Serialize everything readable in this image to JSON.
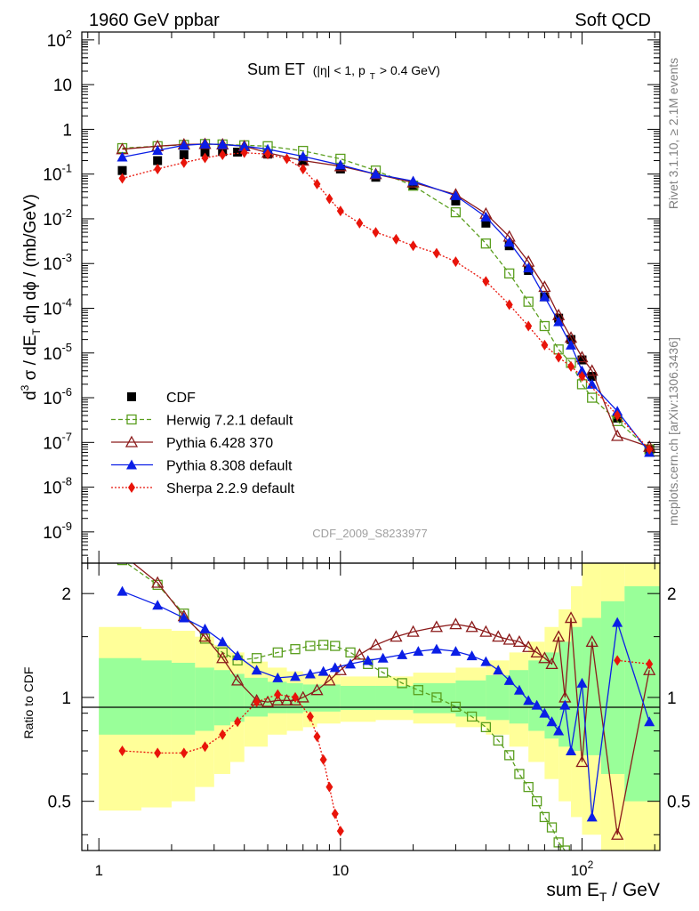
{
  "header": {
    "left": "1960 GeV ppbar",
    "right": "Soft QCD"
  },
  "side_labels": {
    "rivet": "Rivet 3.1.10, ≥ 2.1M events",
    "mcplots": "mcplots.cern.ch [arXiv:1306.3436]"
  },
  "plot_title": {
    "main": "Sum ET",
    "eta_cut": "(|η| < 1, p",
    "pt_sub": "T",
    "pt_cut": " > 0.4 GeV)"
  },
  "analysis_id": "CDF_2009_S8233977",
  "axes": {
    "y_main_label": "d³σ / dE_T dη dφ / (mb/GeV)",
    "y_ratio_label": "Ratio to CDF",
    "x_label": "sum E_T / GeV"
  },
  "legend": [
    {
      "label": "CDF",
      "color": "#000000",
      "marker": "square-filled",
      "line": "none"
    },
    {
      "label": "Herwig 7.2.1 default",
      "color": "#5a9e1e",
      "marker": "square-open",
      "line": "dashed"
    },
    {
      "label": "Pythia 6.428 370",
      "color": "#8b1a1a",
      "marker": "triangle-open",
      "line": "solid"
    },
    {
      "label": "Pythia 8.308 default",
      "color": "#0a1ee6",
      "marker": "triangle-filled",
      "line": "solid"
    },
    {
      "label": "Sherpa 2.2.9 default",
      "color": "#e8140a",
      "marker": "diamond-filled",
      "line": "dotted"
    }
  ],
  "chart_data": [
    {
      "type": "scatter",
      "panel": "main",
      "x_scale": "log",
      "y_scale": "log",
      "xlim": [
        0.85,
        210
      ],
      "ylim": [
        2e-10,
        150
      ],
      "xlabel": "sum E_T / GeV",
      "ylabel": "d³σ / dE_T dη dφ / (mb/GeV)",
      "y_ticks": [
        "10^{2}",
        "10",
        "1",
        "10^{-1}",
        "10^{-2}",
        "10^{-3}",
        "10^{-4}",
        "10^{-5}",
        "10^{-6}",
        "10^{-7}",
        "10^{-8}",
        "10^{-9}"
      ],
      "series": [
        {
          "name": "CDF",
          "x": [
            1.25,
            1.75,
            2.25,
            2.75,
            3.25,
            3.75,
            5,
            7,
            10,
            14,
            20,
            30,
            40,
            50,
            60,
            70,
            80,
            90,
            100,
            110,
            140,
            190
          ],
          "y": [
            0.12,
            0.2,
            0.27,
            0.31,
            0.32,
            0.31,
            0.28,
            0.2,
            0.13,
            0.085,
            0.055,
            0.025,
            0.008,
            0.0025,
            0.0007,
            0.00018,
            6e-05,
            2e-05,
            7e-06,
            3e-06,
            3.5e-07,
            7e-08
          ]
        },
        {
          "name": "Herwig 7.2.1 default",
          "x": [
            1.25,
            1.75,
            2.25,
            2.75,
            3.25,
            4,
            5,
            7,
            10,
            14,
            20,
            30,
            40,
            50,
            60,
            70,
            80,
            90,
            100,
            110,
            140,
            190
          ],
          "y": [
            0.38,
            0.42,
            0.45,
            0.47,
            0.46,
            0.44,
            0.42,
            0.33,
            0.22,
            0.12,
            0.055,
            0.014,
            0.0028,
            0.0006,
            0.00014,
            4e-05,
            1.2e-05,
            6e-06,
            2e-06,
            1e-06,
            3e-07,
            7e-08
          ]
        },
        {
          "name": "Pythia 6.428 370",
          "x": [
            1.25,
            1.75,
            2.25,
            2.75,
            3.25,
            4,
            5,
            7,
            10,
            14,
            20,
            30,
            40,
            50,
            60,
            70,
            80,
            90,
            100,
            110,
            140,
            190
          ],
          "y": [
            0.36,
            0.42,
            0.46,
            0.47,
            0.46,
            0.42,
            0.3,
            0.2,
            0.15,
            0.1,
            0.065,
            0.035,
            0.013,
            0.004,
            0.0011,
            0.0003,
            7e-05,
            2.2e-05,
            8e-06,
            4e-06,
            1.4e-07,
            8e-08
          ]
        },
        {
          "name": "Pythia 8.308 default",
          "x": [
            1.25,
            1.75,
            2.25,
            2.75,
            3.25,
            4,
            5,
            7,
            10,
            14,
            20,
            30,
            40,
            50,
            60,
            70,
            80,
            90,
            100,
            110,
            140,
            190
          ],
          "y": [
            0.24,
            0.34,
            0.44,
            0.47,
            0.46,
            0.42,
            0.36,
            0.25,
            0.16,
            0.1,
            0.07,
            0.033,
            0.011,
            0.003,
            0.0008,
            0.00018,
            5e-05,
            1.5e-05,
            4e-06,
            2e-06,
            5e-07,
            6e-08
          ]
        },
        {
          "name": "Sherpa 2.2.9 default",
          "x": [
            1.25,
            1.75,
            2.25,
            2.75,
            3.25,
            4,
            5,
            6,
            7,
            8,
            9,
            10,
            12,
            14,
            17,
            20,
            25,
            30,
            40,
            50,
            60,
            70,
            80,
            90,
            100,
            140,
            190
          ],
          "y": [
            0.08,
            0.13,
            0.18,
            0.23,
            0.27,
            0.3,
            0.28,
            0.22,
            0.13,
            0.06,
            0.028,
            0.015,
            0.008,
            0.005,
            0.0035,
            0.0025,
            0.0017,
            0.0011,
            0.0004,
            0.00012,
            4e-05,
            1.5e-05,
            8e-06,
            5e-06,
            3e-06,
            4e-07,
            7e-08
          ]
        }
      ]
    },
    {
      "type": "line",
      "panel": "ratio",
      "x_scale": "log",
      "y_scale": "log",
      "xlim": [
        0.85,
        210
      ],
      "ylim": [
        0.36,
        2.45
      ],
      "xlabel": "sum E_T / GeV",
      "ylabel": "Ratio to CDF",
      "x_ticks": [
        "1",
        "10",
        "10^{2}"
      ],
      "y_ticks": [
        "0.5",
        "1",
        "2"
      ],
      "reference_line": 1,
      "bands": {
        "x_edges": [
          1,
          1.5,
          2,
          2.5,
          3,
          3.5,
          4,
          5,
          6,
          7,
          8,
          10,
          14,
          20,
          30,
          40,
          50,
          60,
          70,
          80,
          90,
          100,
          120,
          150,
          210
        ],
        "stat_lo": [
          0.78,
          0.78,
          0.78,
          0.8,
          0.83,
          0.85,
          0.88,
          0.9,
          0.9,
          0.91,
          0.91,
          0.92,
          0.92,
          0.9,
          0.88,
          0.86,
          0.84,
          0.8,
          0.76,
          0.72,
          0.7,
          0.68,
          0.6,
          0.5
        ],
        "stat_hi": [
          1.3,
          1.28,
          1.26,
          1.22,
          1.2,
          1.17,
          1.14,
          1.11,
          1.1,
          1.09,
          1.09,
          1.08,
          1.08,
          1.1,
          1.12,
          1.16,
          1.2,
          1.28,
          1.35,
          1.45,
          1.6,
          1.7,
          1.9,
          2.1
        ],
        "tot_lo": [
          0.47,
          0.48,
          0.5,
          0.55,
          0.6,
          0.65,
          0.72,
          0.78,
          0.8,
          0.82,
          0.84,
          0.85,
          0.86,
          0.84,
          0.82,
          0.78,
          0.72,
          0.65,
          0.58,
          0.5,
          0.45,
          0.4,
          0.36,
          0.36
        ],
        "tot_hi": [
          1.6,
          1.58,
          1.56,
          1.5,
          1.42,
          1.35,
          1.27,
          1.22,
          1.19,
          1.17,
          1.16,
          1.15,
          1.15,
          1.18,
          1.22,
          1.28,
          1.35,
          1.45,
          1.6,
          1.8,
          2.1,
          2.45,
          2.45,
          2.45
        ],
        "stat_color": "#99ff99",
        "total_color": "#ffff99"
      },
      "series": [
        {
          "name": "Herwig 7.2.1 default",
          "x": [
            1.25,
            1.75,
            2.25,
            2.75,
            3.25,
            3.75,
            4.5,
            5.5,
            6.5,
            7.5,
            8.5,
            9.5,
            11,
            13,
            15,
            18,
            21,
            25,
            30,
            35,
            40,
            45,
            50,
            55,
            60,
            65,
            70,
            75,
            80,
            85
          ],
          "y": [
            2.5,
            2.12,
            1.75,
            1.48,
            1.35,
            1.28,
            1.3,
            1.35,
            1.38,
            1.41,
            1.42,
            1.41,
            1.35,
            1.25,
            1.18,
            1.1,
            1.05,
            1.0,
            0.94,
            0.88,
            0.82,
            0.75,
            0.68,
            0.6,
            0.55,
            0.5,
            0.45,
            0.42,
            0.38,
            0.36
          ]
        },
        {
          "name": "Pythia 6.428 370",
          "x": [
            1.25,
            1.75,
            2.25,
            2.75,
            3.25,
            3.75,
            4.5,
            5,
            5.5,
            6,
            6.5,
            7,
            8,
            9,
            10,
            12,
            14,
            17,
            20,
            25,
            30,
            35,
            40,
            45,
            50,
            55,
            60,
            65,
            70,
            75,
            80,
            85,
            90,
            100,
            110,
            140,
            190
          ],
          "y": [
            2.6,
            2.15,
            1.72,
            1.5,
            1.3,
            1.12,
            0.98,
            0.97,
            0.98,
            0.98,
            0.98,
            1.0,
            1.05,
            1.12,
            1.2,
            1.33,
            1.42,
            1.5,
            1.55,
            1.6,
            1.63,
            1.6,
            1.55,
            1.5,
            1.47,
            1.45,
            1.4,
            1.35,
            1.3,
            1.25,
            1.5,
            1.0,
            1.7,
            0.65,
            1.45,
            0.4,
            1.2
          ]
        },
        {
          "name": "Pythia 8.308 default",
          "x": [
            1.25,
            1.75,
            2.25,
            2.75,
            3.25,
            3.75,
            4.5,
            5.5,
            6.5,
            7.5,
            8.5,
            9.5,
            11,
            13,
            15,
            18,
            21,
            25,
            30,
            35,
            40,
            45,
            50,
            55,
            60,
            65,
            70,
            75,
            80,
            85,
            90,
            100,
            110,
            140,
            190
          ],
          "y": [
            2.03,
            1.85,
            1.7,
            1.58,
            1.45,
            1.32,
            1.2,
            1.14,
            1.15,
            1.17,
            1.19,
            1.22,
            1.25,
            1.28,
            1.3,
            1.33,
            1.36,
            1.38,
            1.36,
            1.32,
            1.27,
            1.2,
            1.12,
            1.05,
            0.98,
            0.95,
            0.9,
            0.85,
            0.8,
            0.95,
            0.7,
            1.1,
            0.45,
            1.65,
            0.85
          ]
        },
        {
          "name": "Sherpa 2.2.9 default",
          "x": [
            1.25,
            1.75,
            2.25,
            2.75,
            3.25,
            3.75,
            4.5,
            5.5,
            6.5,
            7.5,
            8.0,
            8.5,
            9.0,
            9.5,
            10
          ],
          "y": [
            0.7,
            0.69,
            0.69,
            0.72,
            0.78,
            0.85,
            0.97,
            1.02,
            1.0,
            0.88,
            0.77,
            0.66,
            0.55,
            0.46,
            0.41
          ]
        },
        {
          "name": "Sherpa 2.2.9 default (high)",
          "x": [
            140,
            190
          ],
          "y": [
            1.28,
            1.25
          ]
        }
      ]
    }
  ]
}
